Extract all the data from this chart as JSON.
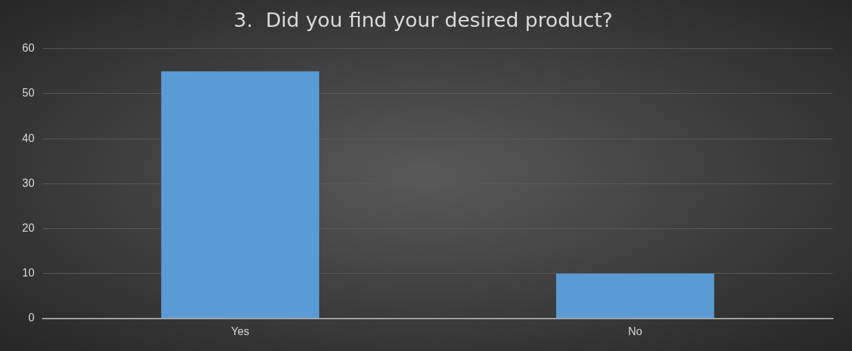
{
  "chart_data": {
    "type": "bar",
    "title": "3.  Did you find your desired product?",
    "categories": [
      "Yes",
      "No"
    ],
    "values": [
      55,
      10
    ],
    "color": "#5b9bd5",
    "ylim": [
      0,
      60
    ],
    "yticks": [
      0,
      10,
      20,
      30,
      40,
      50,
      60
    ],
    "grid": "y"
  }
}
